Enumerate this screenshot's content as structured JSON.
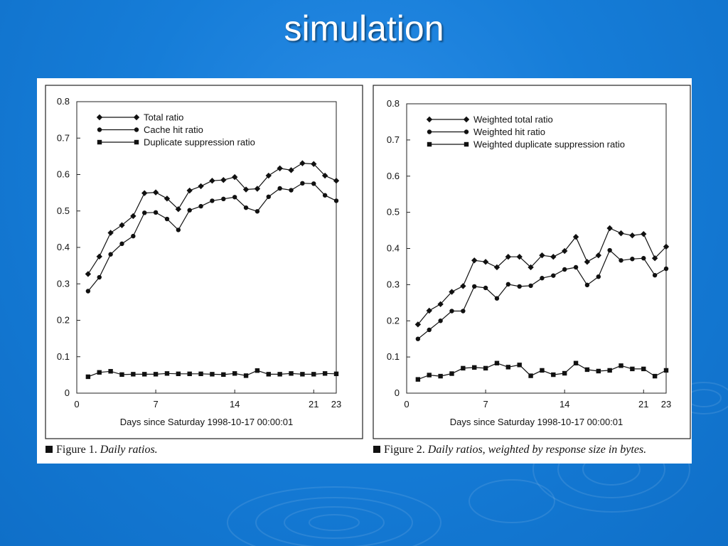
{
  "slide": {
    "title": "simulation"
  },
  "captions": [
    {
      "label": "Figure 1.",
      "text": "Daily ratios."
    },
    {
      "label": "Figure 2.",
      "text": "Daily ratios, weighted by response size in bytes."
    }
  ],
  "chart_data": [
    {
      "type": "line",
      "xlabel": "Days since Saturday 1998-10-17 00:00:01",
      "ylabel": "",
      "xlim": [
        0,
        23
      ],
      "ylim": [
        0,
        0.8
      ],
      "xticks": [
        0,
        7,
        14,
        21,
        23
      ],
      "yticks": [
        0,
        0.1,
        0.2,
        0.3,
        0.4,
        0.5,
        0.6,
        0.7,
        0.8
      ],
      "grid": false,
      "legend": "top-left",
      "x": [
        1,
        2,
        3,
        4,
        5,
        6,
        7,
        8,
        9,
        10,
        11,
        12,
        13,
        14,
        15,
        16,
        17,
        18,
        19,
        20,
        21,
        22,
        23
      ],
      "series": [
        {
          "name": "Total ratio",
          "marker": "diamond",
          "values": [
            0.327,
            0.375,
            0.44,
            0.461,
            0.486,
            0.549,
            0.551,
            0.534,
            0.505,
            0.556,
            0.568,
            0.583,
            0.585,
            0.593,
            0.559,
            0.561,
            0.597,
            0.617,
            0.612,
            0.631,
            0.629,
            0.597,
            0.583
          ]
        },
        {
          "name": "Cache hit ratio",
          "marker": "circle",
          "values": [
            0.28,
            0.318,
            0.381,
            0.41,
            0.431,
            0.495,
            0.496,
            0.478,
            0.448,
            0.502,
            0.513,
            0.528,
            0.533,
            0.538,
            0.509,
            0.499,
            0.539,
            0.562,
            0.557,
            0.576,
            0.575,
            0.543,
            0.528
          ]
        },
        {
          "name": "Duplicate suppression ratio",
          "marker": "square",
          "values": [
            0.045,
            0.057,
            0.06,
            0.051,
            0.052,
            0.052,
            0.052,
            0.054,
            0.053,
            0.053,
            0.053,
            0.052,
            0.051,
            0.054,
            0.048,
            0.062,
            0.052,
            0.052,
            0.054,
            0.052,
            0.052,
            0.054,
            0.053
          ]
        }
      ]
    },
    {
      "type": "line",
      "xlabel": "Days since Saturday 1998-10-17 00:00:01",
      "ylabel": "",
      "xlim": [
        0,
        23
      ],
      "ylim": [
        0,
        0.8
      ],
      "xticks": [
        0,
        7,
        14,
        21,
        23
      ],
      "yticks": [
        0,
        0.1,
        0.2,
        0.3,
        0.4,
        0.5,
        0.6,
        0.7,
        0.8
      ],
      "grid": false,
      "legend": "top-left",
      "x": [
        1,
        2,
        3,
        4,
        5,
        6,
        7,
        8,
        9,
        10,
        11,
        12,
        13,
        14,
        15,
        16,
        17,
        18,
        19,
        20,
        21,
        22,
        23
      ],
      "series": [
        {
          "name": "Weighted total ratio",
          "marker": "diamond",
          "values": [
            0.19,
            0.228,
            0.246,
            0.28,
            0.296,
            0.367,
            0.363,
            0.348,
            0.377,
            0.377,
            0.348,
            0.381,
            0.377,
            0.393,
            0.432,
            0.363,
            0.381,
            0.456,
            0.442,
            0.436,
            0.44,
            0.373,
            0.405
          ]
        },
        {
          "name": "Weighted hit ratio",
          "marker": "circle",
          "values": [
            0.15,
            0.175,
            0.2,
            0.227,
            0.227,
            0.295,
            0.291,
            0.262,
            0.301,
            0.295,
            0.297,
            0.318,
            0.325,
            0.342,
            0.348,
            0.299,
            0.322,
            0.395,
            0.367,
            0.371,
            0.373,
            0.326,
            0.344
          ]
        },
        {
          "name": "Weighted duplicate suppression ratio",
          "marker": "square",
          "values": [
            0.038,
            0.05,
            0.047,
            0.054,
            0.069,
            0.071,
            0.069,
            0.083,
            0.072,
            0.078,
            0.048,
            0.063,
            0.051,
            0.055,
            0.083,
            0.065,
            0.061,
            0.063,
            0.076,
            0.067,
            0.067,
            0.047,
            0.063
          ]
        }
      ]
    }
  ]
}
